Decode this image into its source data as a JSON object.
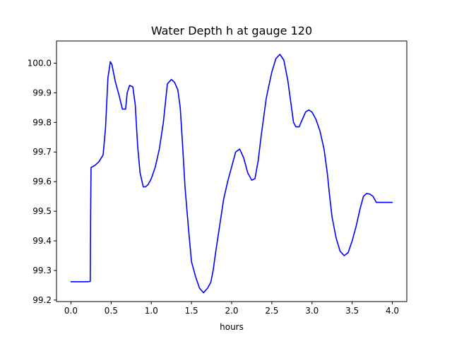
{
  "chart_data": {
    "type": "line",
    "title": "Water Depth h at gauge 120",
    "xlabel": "hours",
    "ylabel": "",
    "xlim": [
      -0.18,
      4.18
    ],
    "ylim": [
      99.195,
      100.075
    ],
    "x_ticks": [
      0.0,
      0.5,
      1.0,
      1.5,
      2.0,
      2.5,
      3.0,
      3.5,
      4.0
    ],
    "x_tick_labels": [
      "0.0",
      "0.5",
      "1.0",
      "1.5",
      "2.0",
      "2.5",
      "3.0",
      "3.5",
      "4.0"
    ],
    "y_ticks": [
      99.2,
      99.3,
      99.4,
      99.5,
      99.6,
      99.7,
      99.8,
      99.9,
      100.0
    ],
    "y_tick_labels": [
      "99.2",
      "99.3",
      "99.4",
      "99.5",
      "99.6",
      "99.7",
      "99.8",
      "99.9",
      "100.0"
    ],
    "grid": false,
    "legend": "none",
    "line_color": "#0000ff",
    "series": [
      {
        "x": [
          0.0,
          0.1,
          0.2,
          0.24,
          0.245,
          0.25,
          0.3,
          0.35,
          0.4,
          0.43,
          0.46,
          0.49,
          0.51,
          0.55,
          0.6,
          0.64,
          0.68,
          0.7,
          0.73,
          0.77,
          0.8,
          0.83,
          0.86,
          0.9,
          0.93,
          0.96,
          1.0,
          1.05,
          1.1,
          1.15,
          1.2,
          1.25,
          1.29,
          1.33,
          1.36,
          1.39,
          1.42,
          1.46,
          1.5,
          1.55,
          1.6,
          1.65,
          1.7,
          1.74,
          1.77,
          1.8,
          1.85,
          1.9,
          1.95,
          2.0,
          2.05,
          2.1,
          2.15,
          2.2,
          2.25,
          2.29,
          2.33,
          2.37,
          2.4,
          2.43,
          2.46,
          2.5,
          2.55,
          2.6,
          2.65,
          2.7,
          2.74,
          2.77,
          2.8,
          2.84,
          2.88,
          2.92,
          2.96,
          3.0,
          3.05,
          3.1,
          3.15,
          3.19,
          3.22,
          3.25,
          3.3,
          3.35,
          3.4,
          3.45,
          3.5,
          3.55,
          3.6,
          3.64,
          3.68,
          3.72,
          3.76,
          3.8,
          3.85,
          3.9,
          3.93,
          3.96,
          3.98,
          4.0
        ],
        "y": [
          99.262,
          99.262,
          99.262,
          99.263,
          99.5,
          99.648,
          99.655,
          99.668,
          99.69,
          99.78,
          99.95,
          100.005,
          99.995,
          99.94,
          99.89,
          99.845,
          99.845,
          99.9,
          99.925,
          99.92,
          99.86,
          99.72,
          99.63,
          99.582,
          99.583,
          99.59,
          99.61,
          99.65,
          99.71,
          99.8,
          99.93,
          99.945,
          99.935,
          99.91,
          99.85,
          99.72,
          99.58,
          99.45,
          99.33,
          99.28,
          99.24,
          99.225,
          99.24,
          99.26,
          99.3,
          99.36,
          99.45,
          99.54,
          99.6,
          99.65,
          99.7,
          99.71,
          99.68,
          99.63,
          99.605,
          99.61,
          99.67,
          99.76,
          99.82,
          99.88,
          99.92,
          99.97,
          100.015,
          100.03,
          100.01,
          99.94,
          99.86,
          99.8,
          99.785,
          99.785,
          99.81,
          99.835,
          99.842,
          99.835,
          99.81,
          99.77,
          99.71,
          99.63,
          99.55,
          99.48,
          99.41,
          99.365,
          99.35,
          99.36,
          99.4,
          99.45,
          99.51,
          99.55,
          99.56,
          99.558,
          99.55,
          99.53,
          99.53,
          99.53,
          99.53,
          99.53,
          99.53,
          99.53
        ]
      }
    ]
  }
}
